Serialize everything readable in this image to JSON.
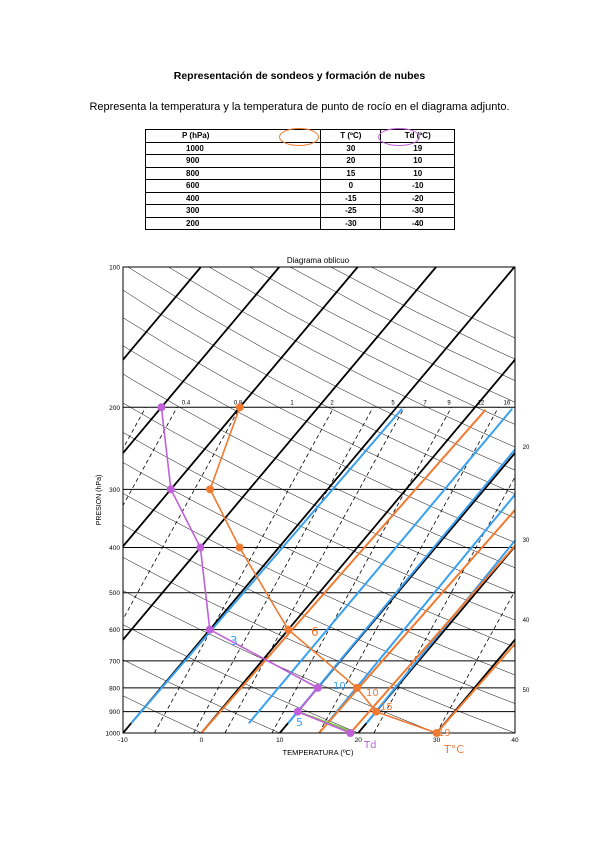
{
  "document": {
    "title": "Representación de sondeos y formación de nubes",
    "instruction": "Representa la temperatura y la temperatura de punto de rocío en el diagrama adjunto."
  },
  "table": {
    "headers": [
      "P (hPa)",
      "T (ºC)",
      "Td (ºC)"
    ],
    "rows": [
      [
        "1000",
        "30",
        "19"
      ],
      [
        "900",
        "20",
        "10"
      ],
      [
        "800",
        "15",
        "10"
      ],
      [
        "600",
        "0",
        "-10"
      ],
      [
        "400",
        "-15",
        "-20"
      ],
      [
        "300",
        "-25",
        "-30"
      ],
      [
        "200",
        "-30",
        "-40"
      ]
    ]
  },
  "diagram": {
    "title": "Diagrama oblicuo",
    "ylabel": "PRESION  (hPa)",
    "xlabel": "TEMPERATURA (ºC)",
    "pressure_ticks": [
      "100",
      "200",
      "300",
      "400",
      "500",
      "600",
      "700",
      "800",
      "900",
      "1000"
    ],
    "temperature_ticks": [
      "-10",
      "0",
      "10",
      "20",
      "30",
      "40"
    ],
    "mixing_ratio_labels": [
      "0.4",
      "0.8",
      "1",
      "2",
      "5",
      "7",
      "9",
      "12",
      "16"
    ],
    "right_scale_labels": [
      "20",
      "30",
      "40",
      "50"
    ],
    "handwritten": {
      "t_label": "T°C",
      "td_label": "Td",
      "annotations": [
        "6",
        "10",
        "15",
        "19",
        "3",
        "10",
        "5"
      ]
    },
    "colors": {
      "temperature": "#f07a30",
      "dew_point": "#c060d8",
      "blue_lines": "#3aa0f0",
      "orange_lines": "#f07a30",
      "green": "#80c040"
    }
  },
  "chart_data": {
    "type": "line",
    "title": "Diagrama oblicuo",
    "xlabel": "TEMPERATURA (ºC)",
    "ylabel": "PRESION  (hPa)",
    "y_scale": "log",
    "xlim": [
      -10,
      40
    ],
    "ylim": [
      1000,
      100
    ],
    "series": [
      {
        "name": "T°C",
        "pressure": [
          1000,
          900,
          800,
          600,
          400,
          300,
          200
        ],
        "values": [
          30,
          20,
          15,
          0,
          -15,
          -25,
          -30
        ]
      },
      {
        "name": "Td",
        "pressure": [
          1000,
          900,
          800,
          600,
          400,
          300,
          200
        ],
        "values": [
          19,
          10,
          10,
          -10,
          -20,
          -30,
          -40
        ]
      }
    ]
  }
}
